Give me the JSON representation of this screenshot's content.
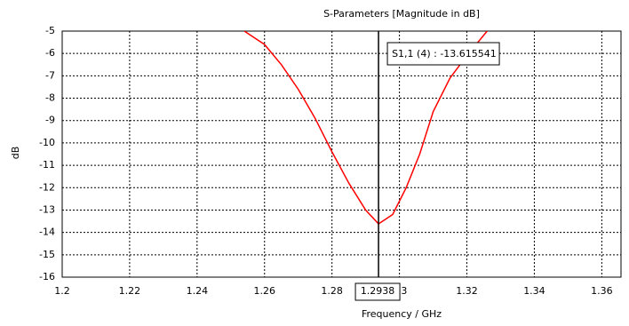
{
  "chart_data": {
    "type": "line",
    "title": "S-Parameters [Magnitude in dB]",
    "x_label": "Frequency / GHz",
    "y_label": "dB",
    "x": [
      1.254,
      1.26,
      1.265,
      1.27,
      1.275,
      1.28,
      1.285,
      1.29,
      1.2938,
      1.298,
      1.302,
      1.306,
      1.31,
      1.315,
      1.32,
      1.326
    ],
    "values": [
      -5,
      -5.6,
      -6.5,
      -7.6,
      -8.9,
      -10.4,
      -11.8,
      -13.0,
      -13.615541,
      -13.2,
      -12.0,
      -10.5,
      -8.6,
      -7.1,
      -6.1,
      -5.0
    ],
    "color": "#ff0000",
    "xlim": [
      1.2,
      1.3657
    ],
    "ylim": [
      -16,
      -5
    ],
    "xticks": [
      1.2,
      1.22,
      1.24,
      1.26,
      1.28,
      1.3,
      1.32,
      1.34,
      1.36
    ],
    "yticks": [
      -5,
      -6,
      -7,
      -8,
      -9,
      -10,
      -11,
      -12,
      -13,
      -14,
      -15,
      -16
    ],
    "grid": true,
    "marker": {
      "x": 1.2938,
      "label": "S1,1 (4) : -13.615541"
    }
  }
}
